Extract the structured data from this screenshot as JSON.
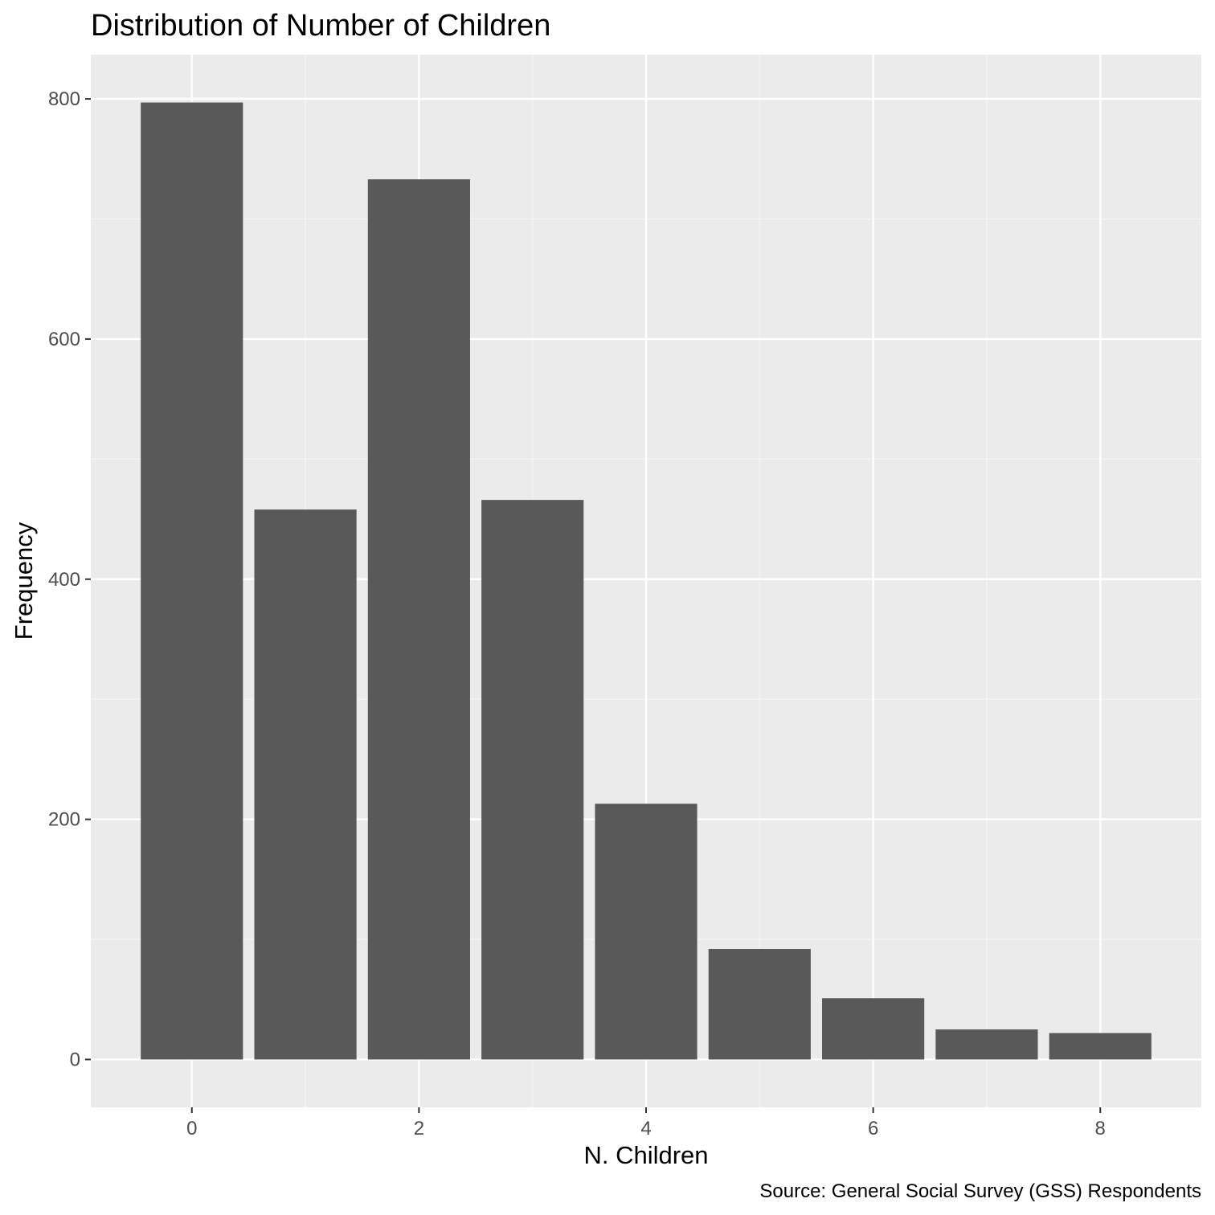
{
  "chart_data": {
    "type": "bar",
    "title": "Distribution of Number of Children",
    "xlabel": "N. Children",
    "ylabel": "Frequency",
    "caption": "Source: General Social Survey (GSS) Respondents",
    "x": [
      0,
      1,
      2,
      3,
      4,
      5,
      6,
      7,
      8
    ],
    "values": [
      797,
      458,
      733,
      466,
      213,
      92,
      51,
      25,
      22
    ],
    "xlim": [
      -0.89,
      8.89
    ],
    "ylim": [
      -39.85,
      836.85
    ],
    "x_ticks": [
      0,
      2,
      4,
      6,
      8
    ],
    "x_tick_labels": [
      "0",
      "2",
      "4",
      "6",
      "8"
    ],
    "y_ticks": [
      0,
      200,
      400,
      600,
      800
    ],
    "y_tick_labels": [
      "0",
      "200",
      "400",
      "600",
      "800"
    ],
    "bar_width": 0.9,
    "grid": true,
    "colors": {
      "bar": "#595959",
      "panel_background": "#ebebeb",
      "grid_major": "#ffffff",
      "grid_minor": "#f5f5f5",
      "tick_label": "#4d4d4d"
    }
  }
}
